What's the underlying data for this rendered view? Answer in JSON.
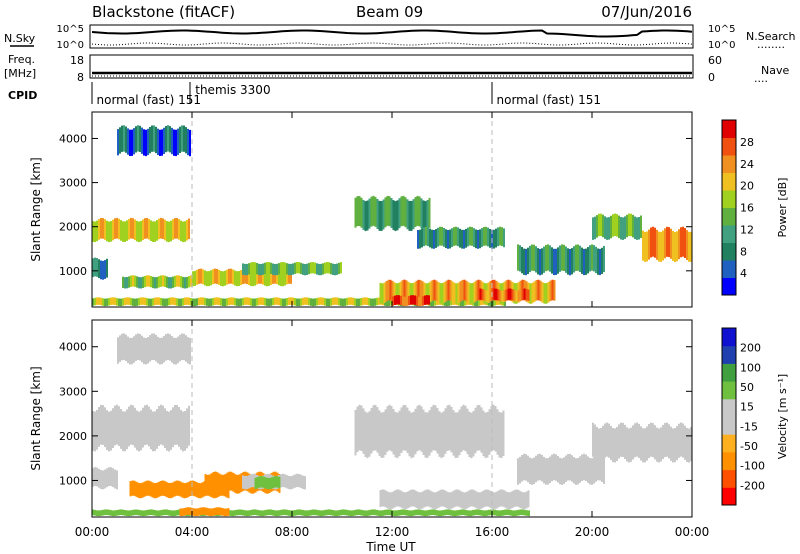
{
  "header": {
    "station": "Blackstone (fitACF)",
    "beam": "Beam 09",
    "date": "07/Jun/2016"
  },
  "side_labels": {
    "nsky": "N.Sky",
    "freq_line1": "Freq.",
    "freq_line2": "[MHz]",
    "cpid": "CPID",
    "nsearch": "N.Search",
    "nave": "Nave",
    "nsearch_line": "........",
    "nave_line": "...."
  },
  "noise_axis": {
    "left_top": "10^5",
    "left_bottom": "10^0",
    "right_top": "10^5",
    "right_bottom": "10^0"
  },
  "freq_axis": {
    "left_top": "18",
    "left_bottom": "8",
    "right_top": "60",
    "right_bottom": "0"
  },
  "cpid_labels": [
    {
      "text": "normal (fast) 151",
      "hour": 0.1,
      "row": "low"
    },
    {
      "text": "themis 3300",
      "hour": 4.05,
      "row": "high"
    },
    {
      "text": "normal (fast) 151",
      "hour": 16.1,
      "row": "low"
    }
  ],
  "panels": {
    "power": {
      "ylabel": "Slant Range [km]",
      "cbar_label": "Power [dB]"
    },
    "velocity": {
      "ylabel": "Slant Range [km]",
      "cbar_label": "Velocity [m s⁻¹]"
    }
  },
  "xlabel": "Time UT",
  "colors": {
    "power": [
      "#0000ff",
      "#2060c0",
      "#208060",
      "#40a080",
      "#60b040",
      "#a0d020",
      "#f0c020",
      "#f09020",
      "#f05010",
      "#e00000"
    ],
    "velocity": [
      "#ff0000",
      "#ff5000",
      "#ff9000",
      "#ffb020",
      "#c8c8c8",
      "#c8c8c8",
      "#70c040",
      "#40a040",
      "#2040b0",
      "#1010d0"
    ]
  },
  "chart_data": [
    {
      "type": "heatmap",
      "panel": "power",
      "ylabel": "Slant Range [km]",
      "colorbar_label": "Power [dB]",
      "colorbar_ticks": [
        "4",
        "8",
        "12",
        "16",
        "20",
        "24",
        "28"
      ],
      "xticks": [
        "00:00",
        "04:00",
        "08:00",
        "12:00",
        "16:00",
        "20:00",
        "00:00"
      ],
      "yticks": [
        "1000",
        "2000",
        "3000",
        "4000"
      ],
      "xlim_hours": [
        0,
        24
      ],
      "ylim_km": [
        180,
        4600
      ],
      "grid": "dashed vertical lines at 04:00 and 16:00",
      "regions": [
        {
          "t0": 1.0,
          "t1": 3.9,
          "r0": 3600,
          "r1": 4300,
          "v": 6
        },
        {
          "t0": 0,
          "t1": 3.9,
          "r0": 1650,
          "r1": 2200,
          "v": 20
        },
        {
          "t0": 0,
          "t1": 0.6,
          "r0": 800,
          "r1": 1300,
          "v": 8
        },
        {
          "t0": 1.2,
          "t1": 4.0,
          "r0": 600,
          "r1": 900,
          "v": 16
        },
        {
          "t0": 4.0,
          "t1": 8.0,
          "r0": 650,
          "r1": 1050,
          "v": 20
        },
        {
          "t0": 6.0,
          "t1": 10.0,
          "r0": 900,
          "r1": 1200,
          "v": 14
        },
        {
          "t0": 0,
          "t1": 16.5,
          "r0": 200,
          "r1": 400,
          "v": 18
        },
        {
          "t0": 10.5,
          "t1": 13.5,
          "r0": 1900,
          "r1": 2700,
          "v": 12
        },
        {
          "t0": 13.0,
          "t1": 16.5,
          "r0": 1500,
          "r1": 2000,
          "v": 10
        },
        {
          "t0": 11.5,
          "t1": 18.5,
          "r0": 250,
          "r1": 800,
          "v": 22
        },
        {
          "t0": 12.0,
          "t1": 13.5,
          "r0": 200,
          "r1": 450,
          "v": 28
        },
        {
          "t0": 15.5,
          "t1": 17.5,
          "r0": 300,
          "r1": 600,
          "v": 26
        },
        {
          "t0": 17.0,
          "t1": 20.5,
          "r0": 900,
          "r1": 1600,
          "v": 10
        },
        {
          "t0": 20.0,
          "t1": 22.0,
          "r0": 1700,
          "r1": 2300,
          "v": 14
        },
        {
          "t0": 22.0,
          "t1": 24.0,
          "r0": 1200,
          "r1": 2000,
          "v": 24
        }
      ]
    },
    {
      "type": "heatmap",
      "panel": "velocity",
      "ylabel": "Slant Range [km]",
      "colorbar_label": "Velocity [m s⁻¹]",
      "colorbar_ticks": [
        "-200",
        "-100",
        "-50",
        "-15",
        "15",
        "50",
        "100",
        "200"
      ],
      "xticks": [
        "00:00",
        "04:00",
        "08:00",
        "12:00",
        "16:00",
        "20:00",
        "00:00"
      ],
      "yticks": [
        "1000",
        "2000",
        "3000",
        "4000"
      ],
      "xlim_hours": [
        0,
        24
      ],
      "ylim_km": [
        180,
        4600
      ],
      "grid": "dashed vertical lines at 04:00 and 16:00",
      "regions": [
        {
          "t0": 1.0,
          "t1": 3.9,
          "r0": 3600,
          "r1": 4300,
          "v": 0
        },
        {
          "t0": 0,
          "t1": 3.9,
          "r0": 1650,
          "r1": 2700,
          "v": 0
        },
        {
          "t0": 0,
          "t1": 1.0,
          "r0": 800,
          "r1": 1300,
          "v": 0
        },
        {
          "t0": 1.5,
          "t1": 5.5,
          "r0": 600,
          "r1": 1000,
          "v": -40
        },
        {
          "t0": 4.5,
          "t1": 7.5,
          "r0": 700,
          "r1": 1200,
          "v": -40
        },
        {
          "t0": 6.0,
          "t1": 8.5,
          "r0": 800,
          "r1": 1150,
          "v": 0
        },
        {
          "t0": 6.5,
          "t1": 7.5,
          "r0": 800,
          "r1": 1100,
          "v": 40
        },
        {
          "t0": 0,
          "t1": 17.5,
          "r0": 200,
          "r1": 350,
          "v": 40
        },
        {
          "t0": 3.5,
          "t1": 5.5,
          "r0": 200,
          "r1": 400,
          "v": -40
        },
        {
          "t0": 10.5,
          "t1": 16.5,
          "r0": 1500,
          "r1": 2700,
          "v": 0
        },
        {
          "t0": 11.5,
          "t1": 17.5,
          "r0": 350,
          "r1": 800,
          "v": 0
        },
        {
          "t0": 17.0,
          "t1": 20.5,
          "r0": 900,
          "r1": 1600,
          "v": 0
        },
        {
          "t0": 20.0,
          "t1": 24.0,
          "r0": 1400,
          "r1": 2300,
          "v": 0
        }
      ]
    }
  ]
}
